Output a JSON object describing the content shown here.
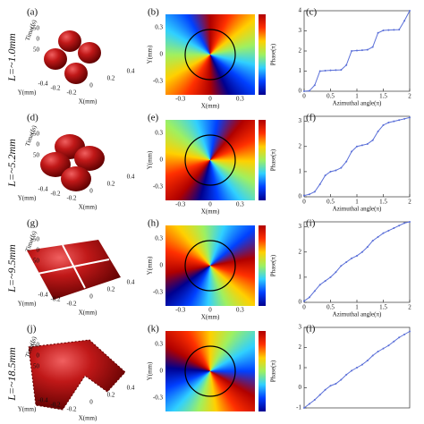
{
  "row_labels": [
    "L=~1.0mm",
    "L=~5.2mm",
    "L=~9.5mm",
    "L=~18.5mm"
  ],
  "panel_labels": [
    [
      "(a)",
      "(b)",
      "(c)"
    ],
    [
      "(d)",
      "(e)",
      "(f)"
    ],
    [
      "(g)",
      "(h)",
      "(i)"
    ],
    [
      "(j)",
      "(k)",
      "(l)"
    ]
  ],
  "three_d": {
    "zlabel": "Time(fs)",
    "ylabel": "Y(mm)",
    "xlabel": "X(mm)",
    "zticks": [
      -50,
      0,
      50
    ],
    "yticks": [
      -0.4,
      -0.2
    ],
    "xticks": [
      -0.2,
      0,
      0.2,
      0.4
    ]
  },
  "phase_maps": {
    "xlabel": "X(mm)",
    "ylabel": "Y(mm)",
    "colorbar_label": "Phase(π)",
    "xticks": [
      -0.3,
      0,
      0.3
    ],
    "yticks": [
      0.3,
      0,
      -0.3
    ]
  },
  "chart_data": [
    {
      "type": "line",
      "xlabel": "Azimuthal angle(π)",
      "x": [
        0,
        0.1,
        0.2,
        0.3,
        0.4,
        0.5,
        0.6,
        0.7,
        0.8,
        0.9,
        1,
        1.1,
        1.2,
        1.3,
        1.4,
        1.5,
        1.6,
        1.7,
        1.8,
        1.9,
        2
      ],
      "xlim": [
        0,
        2
      ],
      "xticks": [
        0,
        0.5,
        1,
        1.5,
        2
      ],
      "ylim": [
        0,
        4
      ],
      "yticks": [
        0,
        1,
        2,
        3,
        4
      ],
      "series": [
        {
          "color": "#5a6fd8",
          "values": [
            0,
            0.02,
            0.3,
            1.0,
            1.02,
            1.04,
            1.05,
            1.06,
            1.3,
            2.0,
            2.02,
            2.04,
            2.06,
            2.2,
            2.9,
            3.02,
            3.04,
            3.05,
            3.06,
            3.5,
            4.0
          ]
        }
      ]
    },
    {
      "type": "line",
      "xlabel": "Azimuthal angle(π)",
      "x": [
        0,
        0.1,
        0.2,
        0.3,
        0.4,
        0.5,
        0.6,
        0.7,
        0.8,
        0.9,
        1,
        1.1,
        1.2,
        1.3,
        1.4,
        1.5,
        1.6,
        1.7,
        1.8,
        1.9,
        2
      ],
      "xlim": [
        0,
        2
      ],
      "xticks": [
        0,
        0.5,
        1,
        1.5,
        2
      ],
      "ylim": [
        0,
        3.2
      ],
      "yticks": [
        0,
        1,
        2,
        3
      ],
      "series": [
        {
          "color": "#5a6fd8",
          "values": [
            0.05,
            0.1,
            0.2,
            0.5,
            0.85,
            1.0,
            1.05,
            1.15,
            1.4,
            1.8,
            2.0,
            2.05,
            2.1,
            2.25,
            2.6,
            2.85,
            2.95,
            3.0,
            3.05,
            3.1,
            3.15
          ]
        }
      ]
    },
    {
      "type": "line",
      "xlabel": "Azimuthal angle(π)",
      "x": [
        0,
        0.1,
        0.2,
        0.3,
        0.4,
        0.5,
        0.6,
        0.7,
        0.8,
        0.9,
        1,
        1.1,
        1.2,
        1.3,
        1.4,
        1.5,
        1.6,
        1.7,
        1.8,
        1.9,
        2
      ],
      "xlim": [
        0,
        2
      ],
      "xticks": [
        0,
        0.5,
        1,
        1.5,
        2
      ],
      "ylim": [
        0,
        3.2
      ],
      "yticks": [
        0,
        1,
        2,
        3
      ],
      "series": [
        {
          "color": "#5a6fd8",
          "values": [
            0.05,
            0.2,
            0.45,
            0.7,
            0.85,
            1.0,
            1.2,
            1.45,
            1.6,
            1.75,
            1.85,
            2.0,
            2.2,
            2.45,
            2.6,
            2.75,
            2.85,
            2.95,
            3.05,
            3.15,
            3.2
          ]
        }
      ]
    },
    {
      "type": "line",
      "x": [
        0,
        0.1,
        0.2,
        0.3,
        0.4,
        0.5,
        0.6,
        0.7,
        0.8,
        0.9,
        1,
        1.1,
        1.2,
        1.3,
        1.4,
        1.5,
        1.6,
        1.7,
        1.8,
        1.9,
        2
      ],
      "xlim": [
        0,
        2
      ],
      "xticks": [],
      "ylim": [
        -1,
        3
      ],
      "yticks": [
        -1,
        0,
        1,
        2,
        3
      ],
      "series": [
        {
          "color": "#5a6fd8",
          "values": [
            -1,
            -0.8,
            -0.6,
            -0.35,
            -0.1,
            0.1,
            0.2,
            0.4,
            0.65,
            0.85,
            1.0,
            1.15,
            1.35,
            1.6,
            1.8,
            1.95,
            2.1,
            2.3,
            2.5,
            2.65,
            2.8
          ]
        }
      ]
    }
  ]
}
